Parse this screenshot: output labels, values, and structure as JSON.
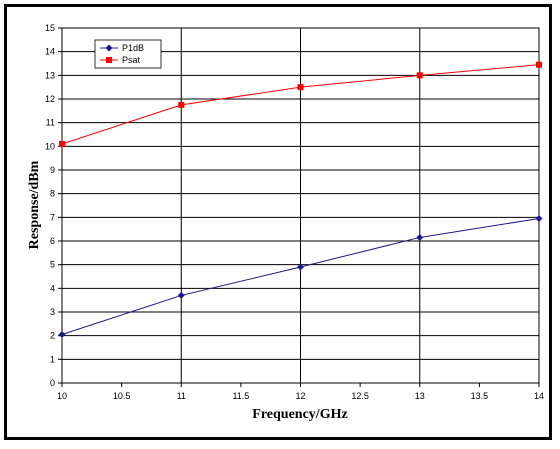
{
  "chart_data": {
    "type": "line",
    "xlabel": "Frequency/GHz",
    "ylabel": "Response/dBm",
    "xlim": [
      10,
      14
    ],
    "ylim": [
      0,
      15
    ],
    "x_ticks": [
      "10",
      "10.5",
      "11",
      "11.5",
      "12",
      "12.5",
      "13",
      "13.5",
      "14"
    ],
    "y_ticks": [
      "0",
      "1",
      "2",
      "3",
      "4",
      "5",
      "6",
      "7",
      "8",
      "9",
      "10",
      "11",
      "12",
      "13",
      "14",
      "15"
    ],
    "grid": true,
    "legend_position": "top-left",
    "series": [
      {
        "name": "P1dB",
        "color": "#1a1a8c",
        "marker": "diamond",
        "x": [
          10,
          11,
          12,
          13,
          14
        ],
        "y": [
          2.05,
          3.7,
          4.9,
          6.15,
          6.95
        ]
      },
      {
        "name": "Psat",
        "color": "#ff0000",
        "marker": "square",
        "x": [
          10,
          11,
          12,
          13,
          14
        ],
        "y": [
          10.1,
          11.75,
          12.5,
          13.0,
          13.45
        ]
      }
    ]
  }
}
